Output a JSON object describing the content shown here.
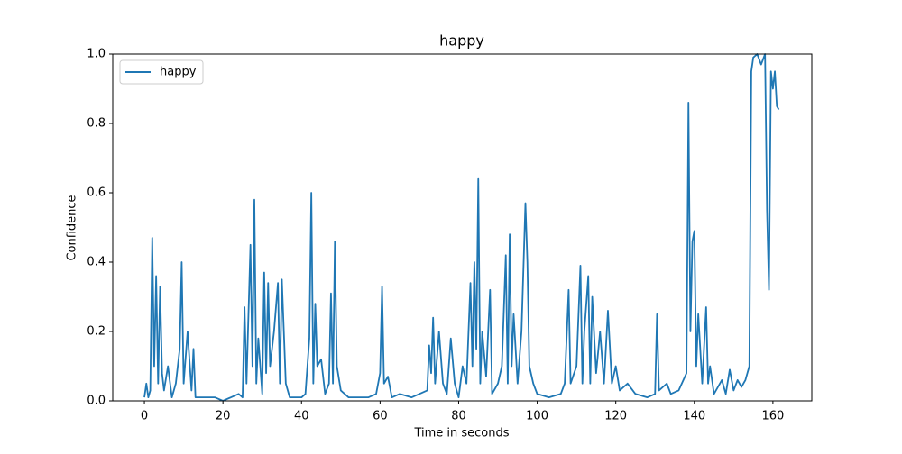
{
  "chart_data": {
    "type": "line",
    "title": "happy",
    "xlabel": "Time in seconds",
    "ylabel": "Confidence",
    "x": [
      0,
      0.5,
      1,
      1.5,
      2,
      2.5,
      3,
      3.5,
      4,
      4.5,
      5,
      6,
      7,
      8,
      9,
      9.5,
      10,
      11,
      12,
      12.5,
      13,
      15,
      18,
      20,
      22,
      24,
      25,
      25.5,
      26,
      27,
      27.5,
      28,
      28.5,
      29,
      30,
      30.5,
      31,
      31.5,
      32,
      33,
      34,
      34.5,
      35,
      36,
      37,
      40,
      41,
      42,
      42.5,
      43,
      43.5,
      44,
      45,
      46,
      47,
      47.5,
      48,
      48.5,
      49,
      50,
      52,
      55,
      57,
      59,
      60,
      60.5,
      61,
      62,
      63,
      65,
      68,
      70,
      72,
      72.5,
      73,
      73.5,
      74,
      75,
      76,
      77,
      78,
      79,
      80,
      81,
      82,
      83,
      83.5,
      84,
      84.5,
      85,
      85.5,
      86,
      87,
      88,
      88.5,
      90,
      91,
      92,
      92.5,
      93,
      93.5,
      94,
      95,
      96,
      97,
      97.5,
      98,
      99,
      100,
      103,
      106,
      107,
      108,
      108.5,
      110,
      111,
      111.5,
      112,
      113,
      113.5,
      114,
      115,
      116,
      117,
      118,
      119,
      120,
      121,
      123,
      125,
      128,
      130,
      130.5,
      131,
      133,
      134,
      136,
      138,
      138.5,
      139,
      139.5,
      140,
      140.5,
      141,
      142,
      143,
      143.5,
      144,
      145,
      147,
      148,
      149,
      150,
      151,
      152,
      153,
      154,
      154.5,
      155,
      156,
      157,
      158,
      158.5,
      159,
      159.5,
      160,
      160.5,
      161,
      161.5
    ],
    "series": [
      {
        "name": "happy",
        "color": "#1f77b4",
        "values": [
          0.01,
          0.05,
          0.01,
          0.03,
          0.47,
          0.1,
          0.36,
          0.05,
          0.33,
          0.08,
          0.03,
          0.1,
          0.01,
          0.05,
          0.15,
          0.4,
          0.05,
          0.2,
          0.03,
          0.15,
          0.01,
          0.01,
          0.01,
          0,
          0.01,
          0.02,
          0.01,
          0.27,
          0.05,
          0.45,
          0.1,
          0.58,
          0.05,
          0.18,
          0.02,
          0.37,
          0.08,
          0.34,
          0.1,
          0.2,
          0.34,
          0.05,
          0.35,
          0.05,
          0.01,
          0.01,
          0.02,
          0.18,
          0.6,
          0.05,
          0.28,
          0.1,
          0.12,
          0.02,
          0.05,
          0.31,
          0.05,
          0.46,
          0.1,
          0.03,
          0.01,
          0.01,
          0.01,
          0.02,
          0.08,
          0.33,
          0.05,
          0.07,
          0.01,
          0.02,
          0.01,
          0.02,
          0.03,
          0.16,
          0.08,
          0.24,
          0.05,
          0.2,
          0.05,
          0.02,
          0.18,
          0.05,
          0.01,
          0.1,
          0.05,
          0.34,
          0.1,
          0.4,
          0.15,
          0.64,
          0.05,
          0.2,
          0.07,
          0.32,
          0.02,
          0.05,
          0.1,
          0.42,
          0.05,
          0.48,
          0.1,
          0.25,
          0.05,
          0.2,
          0.57,
          0.4,
          0.1,
          0.05,
          0.02,
          0.01,
          0.02,
          0.05,
          0.32,
          0.05,
          0.1,
          0.39,
          0.05,
          0.2,
          0.36,
          0.05,
          0.3,
          0.08,
          0.2,
          0.05,
          0.26,
          0.05,
          0.1,
          0.03,
          0.05,
          0.02,
          0.01,
          0.02,
          0.25,
          0.03,
          0.05,
          0.02,
          0.03,
          0.08,
          0.86,
          0.2,
          0.46,
          0.49,
          0.1,
          0.25,
          0.05,
          0.27,
          0.05,
          0.1,
          0.02,
          0.06,
          0.02,
          0.09,
          0.03,
          0.06,
          0.04,
          0.06,
          0.1,
          0.95,
          0.99,
          1.0,
          0.97,
          1.0,
          0.55,
          0.32,
          0.95,
          0.9,
          0.95,
          0.85,
          0.84
        ]
      }
    ],
    "xlim": [
      -8.05,
      169.9
    ],
    "ylim": [
      0,
      1
    ],
    "xticks": [
      0,
      20,
      40,
      60,
      80,
      100,
      120,
      140,
      160
    ],
    "yticks": [
      {
        "value": 0,
        "label": "0.0"
      },
      0.2,
      0.4,
      0.6,
      0.8,
      {
        "value": 1,
        "label": "1.0"
      }
    ],
    "legend": "upper left"
  }
}
